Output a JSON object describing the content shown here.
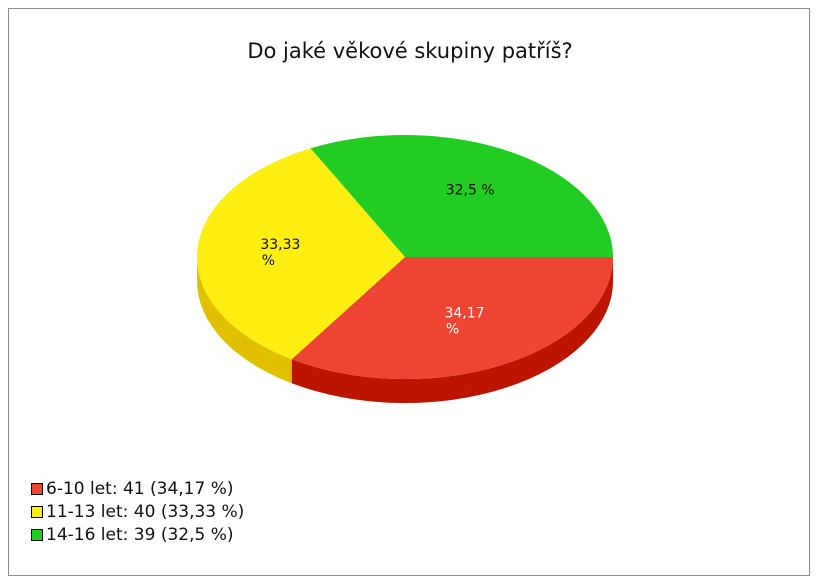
{
  "chart_data": {
    "type": "pie",
    "title": "Do jaké věkové skupiny patříš?",
    "slices": [
      {
        "label": "6-10 let",
        "count": 41,
        "percent": 34.17,
        "pct_label": "34,17 %",
        "legend": "6-10 let: 41 (34,17 %)",
        "color": "#ee4433",
        "side_color": "#bb1500",
        "label_color": "#ffffff"
      },
      {
        "label": "11-13 let",
        "count": 40,
        "percent": 33.33,
        "pct_label": "33,33 %",
        "legend": "11-13 let: 40 (33,33 %)",
        "color": "#ffee11",
        "side_color": "#e0c000",
        "label_color": "#111111"
      },
      {
        "label": "14-16 let",
        "count": 39,
        "percent": 32.5,
        "pct_label": "32,5 %",
        "legend": "14-16 let: 39 (32,5 %)",
        "color": "#22cc22",
        "side_color": "#119911",
        "label_color": "#111111"
      }
    ],
    "legend_position": "bottom-left"
  }
}
